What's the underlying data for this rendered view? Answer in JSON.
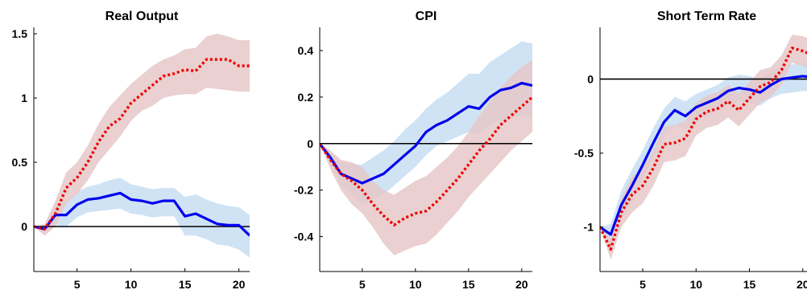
{
  "chart_data": [
    {
      "type": "line",
      "title": "Real Output",
      "xlabel": "",
      "ylabel": "",
      "xlim": [
        1,
        21
      ],
      "ylim": [
        -0.35,
        1.55
      ],
      "xticks": [
        5,
        10,
        15,
        20
      ],
      "yticks": [
        0,
        0.5,
        1,
        1.5
      ],
      "ytick_labels": [
        "0",
        "0.5",
        "1",
        "1.5"
      ],
      "x": [
        1,
        2,
        3,
        4,
        5,
        6,
        7,
        8,
        9,
        10,
        11,
        12,
        13,
        14,
        15,
        16,
        17,
        18,
        19,
        20,
        21
      ],
      "series": [
        {
          "color": "#0000ee",
          "style": "solid",
          "band_color": "#cfe3f5",
          "values": [
            0,
            -0.02,
            0.09,
            0.09,
            0.17,
            0.21,
            0.22,
            0.24,
            0.26,
            0.21,
            0.2,
            0.18,
            0.2,
            0.2,
            0.08,
            0.1,
            0.06,
            0.02,
            0.01,
            0.01,
            -0.07
          ],
          "lower": [
            0,
            -0.05,
            0.01,
            0.0,
            0.07,
            0.11,
            0.12,
            0.13,
            0.14,
            0.1,
            0.09,
            0.07,
            0.08,
            0.08,
            -0.07,
            -0.07,
            -0.1,
            -0.14,
            -0.15,
            -0.18,
            -0.24
          ],
          "upper": [
            0,
            0.01,
            0.16,
            0.2,
            0.27,
            0.31,
            0.33,
            0.36,
            0.38,
            0.33,
            0.31,
            0.29,
            0.3,
            0.3,
            0.23,
            0.25,
            0.21,
            0.18,
            0.16,
            0.15,
            0.09
          ]
        },
        {
          "color": "#ee0000",
          "style": "dotted",
          "band_color": "#e6c8c8",
          "values": [
            0,
            -0.02,
            0.1,
            0.3,
            0.38,
            0.5,
            0.66,
            0.78,
            0.84,
            0.96,
            1.03,
            1.1,
            1.17,
            1.19,
            1.22,
            1.21,
            1.3,
            1.3,
            1.3,
            1.25,
            1.25
          ],
          "lower": [
            0,
            -0.07,
            0.0,
            0.18,
            0.25,
            0.36,
            0.5,
            0.6,
            0.7,
            0.82,
            0.9,
            0.94,
            1.0,
            1.02,
            1.03,
            1.03,
            1.08,
            1.07,
            1.06,
            1.05,
            1.05
          ],
          "upper": [
            0,
            0.02,
            0.2,
            0.42,
            0.5,
            0.63,
            0.8,
            0.93,
            1.02,
            1.11,
            1.18,
            1.25,
            1.3,
            1.33,
            1.38,
            1.39,
            1.48,
            1.5,
            1.48,
            1.45,
            1.45
          ]
        }
      ]
    },
    {
      "type": "line",
      "title": "CPI",
      "xlabel": "",
      "ylabel": "",
      "xlim": [
        1,
        21
      ],
      "ylim": [
        -0.55,
        0.5
      ],
      "xticks": [
        5,
        10,
        15,
        20
      ],
      "yticks": [
        -0.4,
        -0.2,
        0,
        0.2,
        0.4
      ],
      "ytick_labels": [
        "-0.4",
        "-0.2",
        "0",
        "0.2",
        "0.4"
      ],
      "x": [
        1,
        2,
        3,
        4,
        5,
        6,
        7,
        8,
        9,
        10,
        11,
        12,
        13,
        14,
        15,
        16,
        17,
        18,
        19,
        20,
        21
      ],
      "series": [
        {
          "color": "#0000ee",
          "style": "solid",
          "band_color": "#cfe3f5",
          "values": [
            0,
            -0.06,
            -0.13,
            -0.15,
            -0.17,
            -0.15,
            -0.13,
            -0.09,
            -0.05,
            -0.01,
            0.05,
            0.08,
            0.1,
            0.13,
            0.16,
            0.15,
            0.2,
            0.23,
            0.24,
            0.26,
            0.25
          ],
          "lower": [
            0,
            -0.09,
            -0.18,
            -0.22,
            -0.26,
            -0.24,
            -0.22,
            -0.18,
            -0.14,
            -0.1,
            -0.05,
            -0.01,
            0.01,
            0.03,
            0.05,
            0.04,
            0.08,
            0.1,
            0.11,
            0.12,
            0.11
          ],
          "upper": [
            0,
            -0.03,
            -0.08,
            -0.09,
            -0.09,
            -0.06,
            -0.03,
            0.01,
            0.06,
            0.1,
            0.15,
            0.19,
            0.22,
            0.26,
            0.3,
            0.3,
            0.35,
            0.38,
            0.41,
            0.44,
            0.43
          ]
        },
        {
          "color": "#ee0000",
          "style": "dotted",
          "band_color": "#e6c8c8",
          "values": [
            0,
            -0.07,
            -0.13,
            -0.16,
            -0.2,
            -0.26,
            -0.31,
            -0.35,
            -0.32,
            -0.3,
            -0.29,
            -0.25,
            -0.2,
            -0.15,
            -0.09,
            -0.03,
            0.02,
            0.08,
            0.12,
            0.16,
            0.2
          ],
          "lower": [
            0,
            -0.11,
            -0.2,
            -0.26,
            -0.3,
            -0.36,
            -0.43,
            -0.48,
            -0.46,
            -0.44,
            -0.43,
            -0.39,
            -0.34,
            -0.29,
            -0.23,
            -0.18,
            -0.13,
            -0.08,
            -0.03,
            0.01,
            0.05
          ],
          "upper": [
            0,
            -0.03,
            -0.07,
            -0.08,
            -0.1,
            -0.16,
            -0.2,
            -0.22,
            -0.19,
            -0.16,
            -0.14,
            -0.1,
            -0.06,
            -0.01,
            0.05,
            0.12,
            0.18,
            0.24,
            0.29,
            0.33,
            0.36
          ]
        }
      ]
    },
    {
      "type": "line",
      "title": "Short Term Rate",
      "xlabel": "",
      "ylabel": "",
      "xlim": [
        1,
        21
      ],
      "ylim": [
        -1.3,
        0.35
      ],
      "xticks": [
        5,
        10,
        15,
        20
      ],
      "yticks": [
        -1,
        -0.5,
        0
      ],
      "ytick_labels": [
        "-1",
        "-0.5",
        "0"
      ],
      "x": [
        1,
        2,
        3,
        4,
        5,
        6,
        7,
        8,
        9,
        10,
        11,
        12,
        13,
        14,
        15,
        16,
        17,
        18,
        19,
        20,
        21
      ],
      "series": [
        {
          "color": "#0000ee",
          "style": "solid",
          "band_color": "#cfe3f5",
          "values": [
            -1.0,
            -1.05,
            -0.85,
            -0.72,
            -0.58,
            -0.43,
            -0.29,
            -0.21,
            -0.25,
            -0.19,
            -0.16,
            -0.13,
            -0.08,
            -0.06,
            -0.07,
            -0.09,
            -0.04,
            0.0,
            0.01,
            0.02,
            0.01
          ],
          "lower": [
            -1.0,
            -1.12,
            -0.95,
            -0.83,
            -0.68,
            -0.53,
            -0.39,
            -0.31,
            -0.34,
            -0.28,
            -0.25,
            -0.22,
            -0.18,
            -0.15,
            -0.16,
            -0.18,
            -0.13,
            -0.1,
            -0.09,
            -0.08,
            -0.08
          ],
          "upper": [
            -1.0,
            -0.98,
            -0.75,
            -0.61,
            -0.48,
            -0.33,
            -0.2,
            -0.12,
            -0.15,
            -0.1,
            -0.07,
            -0.04,
            0.01,
            0.03,
            0.02,
            0.0,
            0.05,
            0.09,
            0.1,
            0.11,
            0.1
          ]
        },
        {
          "color": "#ee0000",
          "style": "dotted",
          "band_color": "#e6c8c8",
          "values": [
            -1.0,
            -1.15,
            -0.9,
            -0.78,
            -0.72,
            -0.6,
            -0.44,
            -0.43,
            -0.4,
            -0.27,
            -0.22,
            -0.2,
            -0.15,
            -0.21,
            -0.13,
            -0.05,
            -0.02,
            0.06,
            0.21,
            0.19,
            0.16
          ],
          "lower": [
            -1.0,
            -1.22,
            -1.0,
            -0.9,
            -0.84,
            -0.72,
            -0.56,
            -0.55,
            -0.52,
            -0.38,
            -0.33,
            -0.31,
            -0.26,
            -0.32,
            -0.24,
            -0.16,
            -0.12,
            -0.04,
            0.11,
            0.09,
            0.06
          ],
          "upper": [
            -1.0,
            -1.08,
            -0.8,
            -0.66,
            -0.6,
            -0.48,
            -0.32,
            -0.31,
            -0.28,
            -0.16,
            -0.11,
            -0.09,
            -0.04,
            -0.1,
            -0.02,
            0.06,
            0.08,
            0.16,
            0.3,
            0.29,
            0.26
          ]
        }
      ]
    }
  ]
}
